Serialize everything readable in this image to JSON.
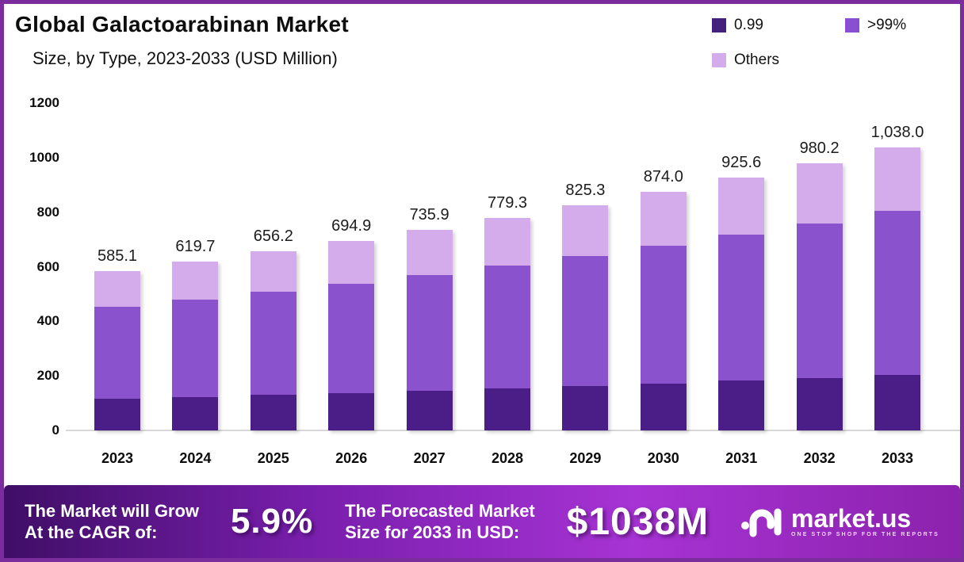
{
  "title": "Global Galactoarabinan Market",
  "subtitle": "Size, by Type, 2023-2033 (USD Million)",
  "legend": {
    "items": [
      {
        "label": "0.99",
        "color": "#45217e"
      },
      {
        "label": ">99%",
        "color": "#8a4fd0"
      },
      {
        "label": "Others",
        "color": "#d4abeb"
      }
    ]
  },
  "chart_data": {
    "type": "bar",
    "stacked": true,
    "title": "Global Galactoarabinan Market Size, by Type, 2023-2033 (USD Million)",
    "categories": [
      "2023",
      "2024",
      "2025",
      "2026",
      "2027",
      "2028",
      "2029",
      "2030",
      "2031",
      "2032",
      "2033"
    ],
    "series": [
      {
        "name": "0.99",
        "color": "#4a1e86",
        "values": [
          115.3,
          122.1,
          129.3,
          136.9,
          145.0,
          153.5,
          162.6,
          172.2,
          182.3,
          193.1,
          204.5
        ]
      },
      {
        "name": ">99%",
        "color": "#8a52cc",
        "values": [
          338.2,
          358.2,
          379.3,
          401.7,
          425.4,
          450.4,
          477.0,
          505.2,
          535.0,
          566.5,
          600.0
        ]
      },
      {
        "name": "Others",
        "color": "#d4abeb",
        "values": [
          131.6,
          139.4,
          147.6,
          156.3,
          165.5,
          175.4,
          185.7,
          196.6,
          208.3,
          220.6,
          233.5
        ]
      }
    ],
    "totals_labels": [
      "585.1",
      "619.7",
      "656.2",
      "694.9",
      "735.9",
      "779.3",
      "825.3",
      "874.0",
      "925.6",
      "980.2",
      "1,038.0"
    ],
    "xlabel": "",
    "ylabel": "",
    "ylim": [
      0,
      1200
    ],
    "yticks": [
      "0",
      "200",
      "400",
      "600",
      "800",
      "1000",
      "1200"
    ],
    "grid": false,
    "legend_position": "top-right"
  },
  "banner": {
    "cagr_line1": "The Market will Grow",
    "cagr_line2": "At the CAGR of:",
    "cagr_value": "5.9%",
    "forecast_line1": "The Forecasted Market",
    "forecast_line2": "Size for 2033 in USD:",
    "forecast_value": "$1038M",
    "brand_name": "market.us",
    "brand_tagline": "ONE STOP SHOP FOR THE REPORTS"
  }
}
